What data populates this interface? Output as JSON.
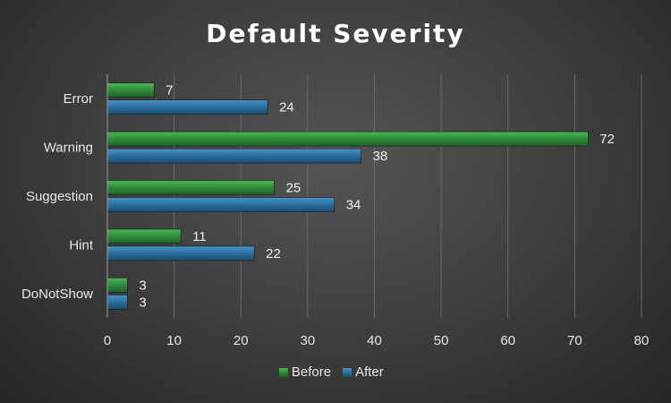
{
  "chart_data": {
    "type": "bar",
    "orientation": "horizontal",
    "title": "Default Severity",
    "categories": [
      "Error",
      "Warning",
      "Suggestion",
      "Hint",
      "DoNotShow"
    ],
    "series": [
      {
        "name": "Before",
        "values": [
          7,
          72,
          25,
          11,
          3
        ],
        "color": "#2e8b3a"
      },
      {
        "name": "After",
        "values": [
          24,
          38,
          34,
          22,
          3
        ],
        "color": "#2a6f9e"
      }
    ],
    "xlim": [
      0,
      80
    ],
    "x_ticks": [
      0,
      10,
      20,
      30,
      40,
      50,
      60,
      70,
      80
    ],
    "grid": true,
    "data_labels": true,
    "legend_position": "bottom",
    "background": "#3c3c3c"
  }
}
